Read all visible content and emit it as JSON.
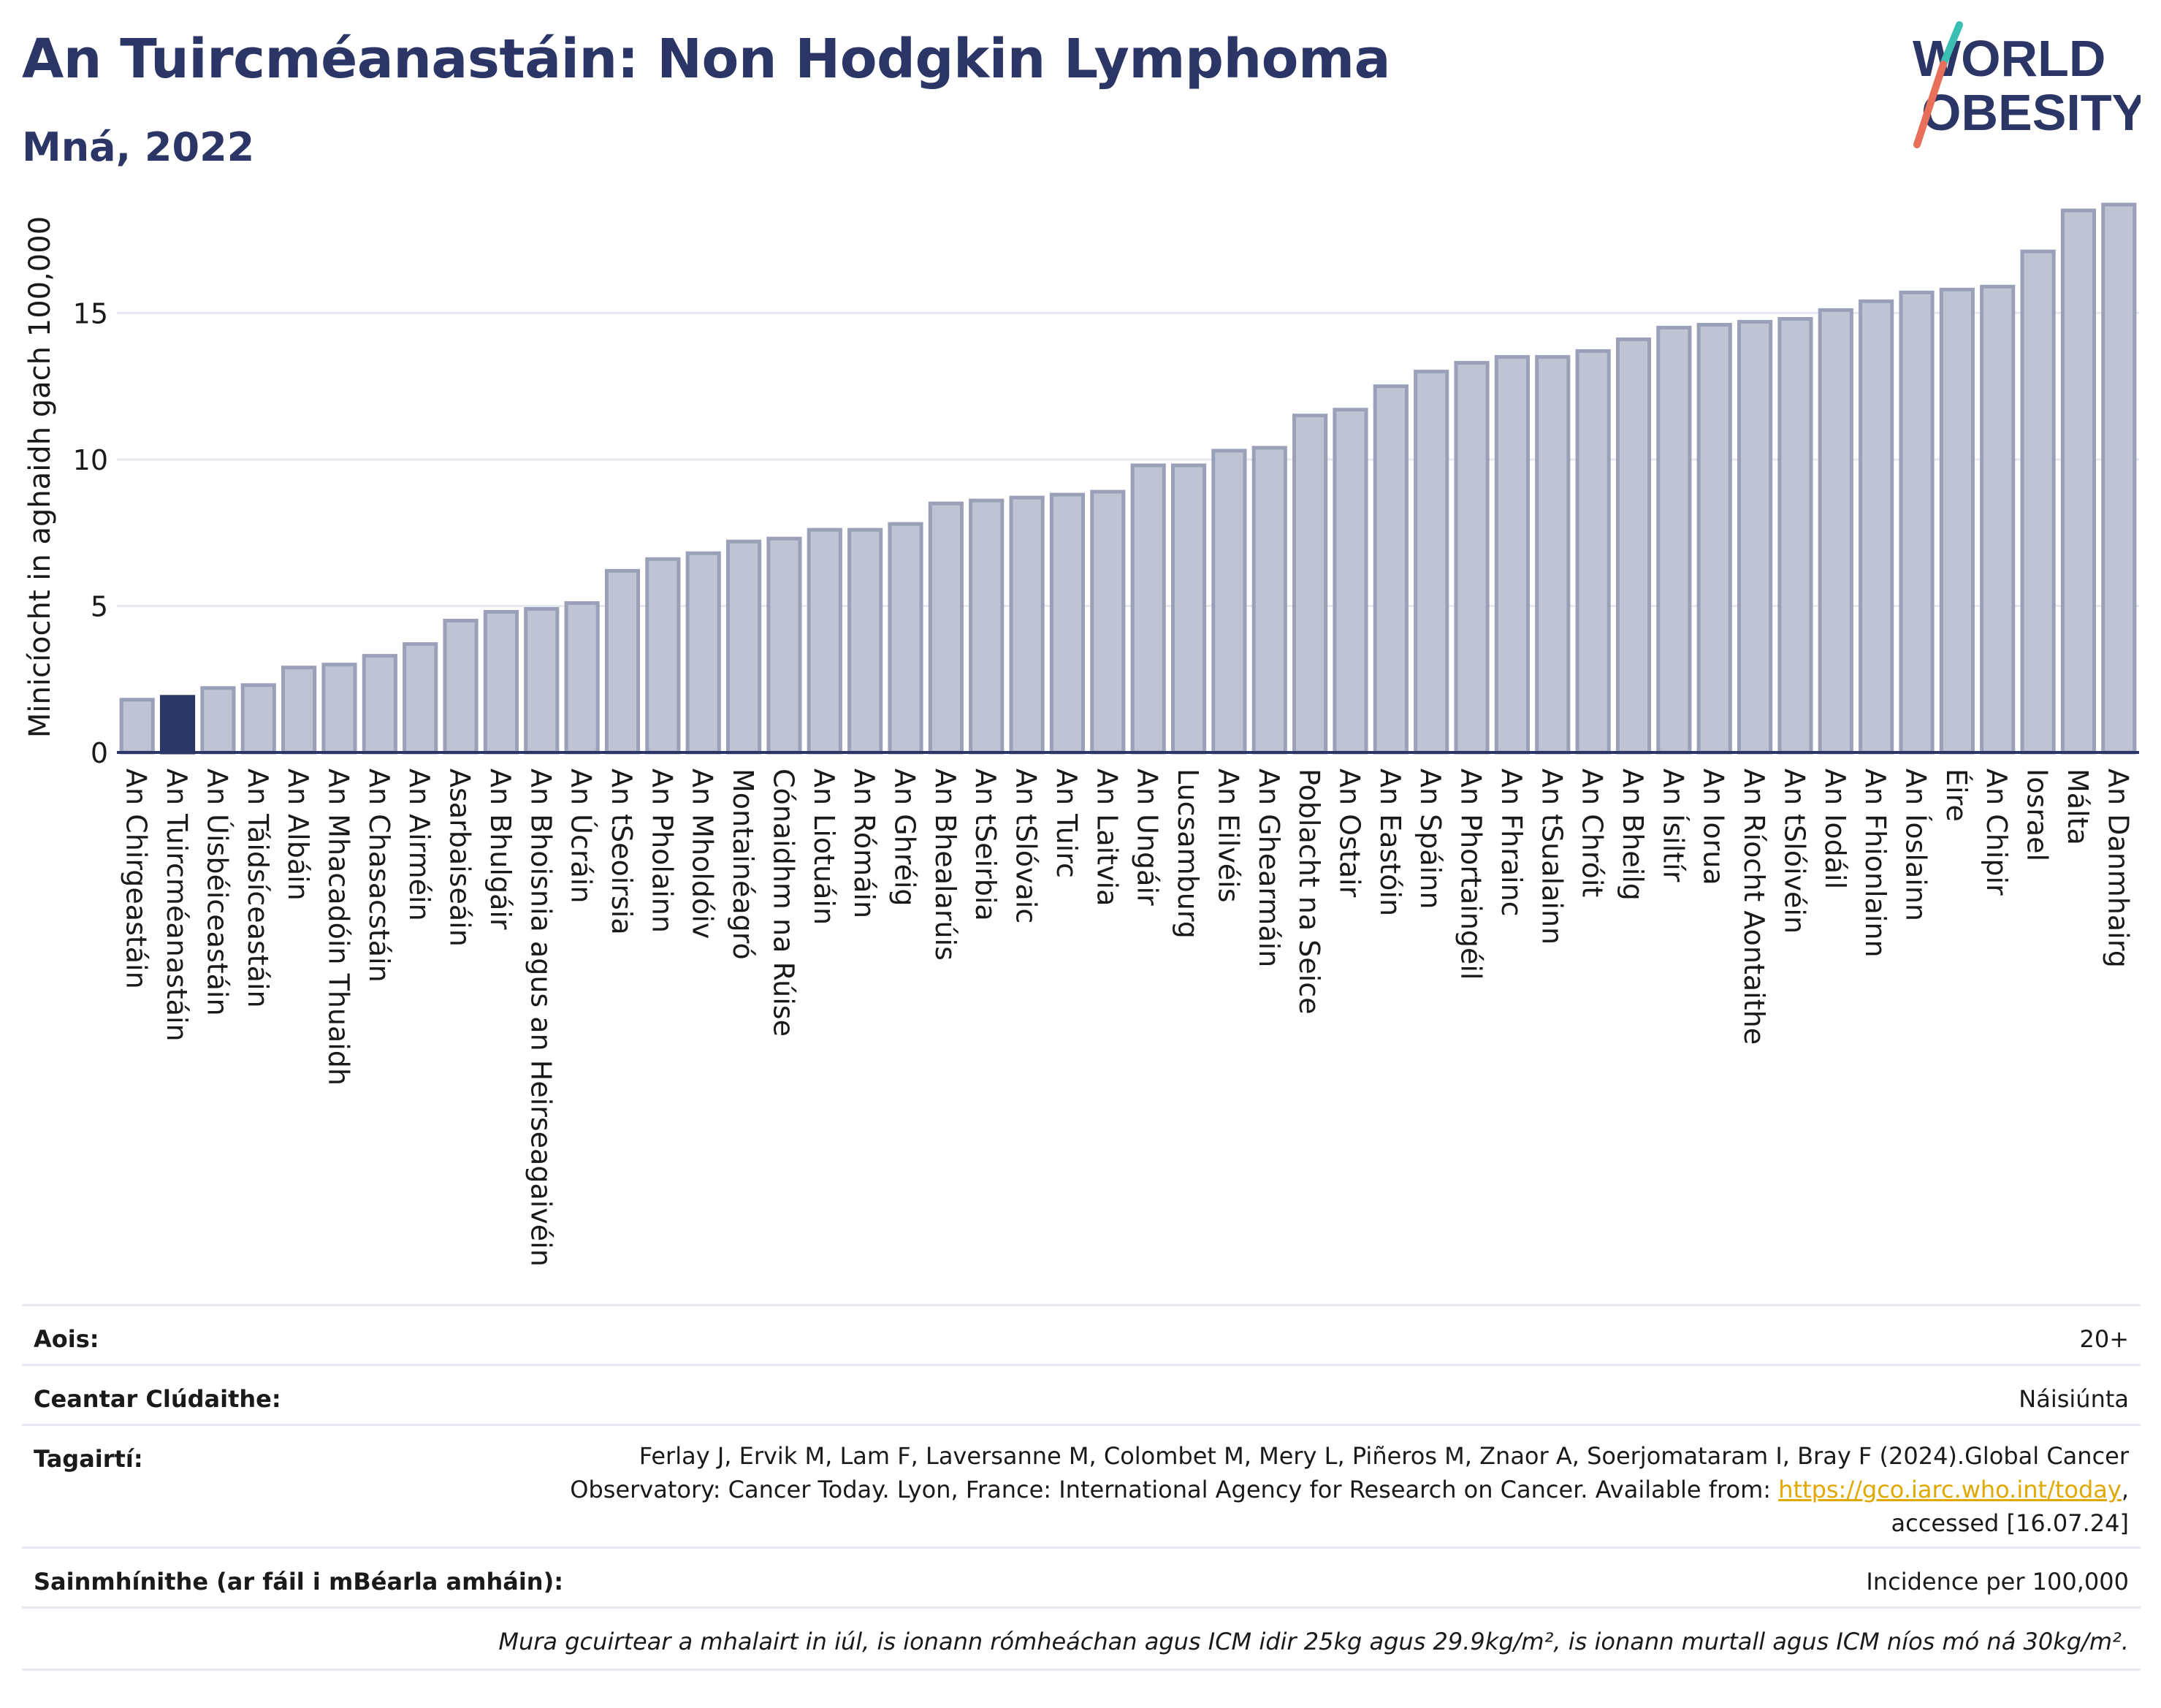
{
  "header": {
    "title": "An Tuircméanastáin: Non Hodgkin Lymphoma",
    "subtitle": "Mná, 2022"
  },
  "logo": {
    "line1": "WORLD",
    "line2": "OBESITY"
  },
  "colors": {
    "bar": "#bfc3d3",
    "bar_stroke": "#9aa0b8",
    "highlight": "#2b3666",
    "title": "#2b3666",
    "link": "#e0a800"
  },
  "chart_data": {
    "type": "bar",
    "ylabel": "Minicíocht in aghaidh gach 100,000",
    "xlabel": "",
    "ylim": [
      0,
      19
    ],
    "yticks": [
      0,
      5,
      10,
      15
    ],
    "grid": true,
    "highlight": "An Tuircméanastáin",
    "categories": [
      "An Chirgeastáin",
      "An Tuircméanastáin",
      "An Úisbéiceastáin",
      "An Táidsíceastáin",
      "An Albáin",
      "An Mhacadóin Thuaidh",
      "An Chasacstáin",
      "An Airméin",
      "Asarbaiseáin",
      "An Bhulgáir",
      "An Bhoisnia agus an Heirseagaivéin",
      "An Úcráin",
      "An tSeoirsia",
      "An Pholainn",
      "An Mholdóiv",
      "Montainéagró",
      "Cónaidhm na Rúise",
      "An Liotuáin",
      "An Rómáin",
      "An Ghréig",
      "An Bhealarúis",
      "An tSeirbia",
      "An tSlóvaic",
      "An Tuirc",
      "An Laitvia",
      "An Ungáir",
      "Lucsamburg",
      "An Eilvéis",
      "An Ghearmáin",
      "Poblacht na Seice",
      "An Ostair",
      "An Eastóin",
      "An Spáinn",
      "An Phortaingéil",
      "An Fhrainc",
      "An tSualainn",
      "An Chróit",
      "An Bheilg",
      "An Ísiltír",
      "An Iorua",
      "An Ríocht Aontaithe",
      "An tSlóivéin",
      "An Iodáil",
      "An Fhionlainn",
      "An Íoslainn",
      "Éire",
      "An Chipir",
      "Iosrael",
      "Málta",
      "An Danmhairg"
    ],
    "values": [
      1.8,
      1.9,
      2.2,
      2.3,
      2.9,
      3.0,
      3.3,
      3.7,
      4.5,
      4.8,
      4.9,
      5.1,
      6.2,
      6.6,
      6.8,
      7.2,
      7.3,
      7.6,
      7.6,
      7.8,
      8.5,
      8.6,
      8.7,
      8.8,
      8.9,
      9.8,
      9.8,
      10.3,
      10.4,
      11.5,
      11.7,
      12.5,
      13.0,
      13.3,
      13.5,
      13.5,
      13.7,
      14.1,
      14.5,
      14.6,
      14.7,
      14.8,
      15.1,
      15.4,
      15.7,
      15.8,
      15.9,
      17.1,
      18.5,
      18.7
    ]
  },
  "info": {
    "age_label": "Aois:",
    "age_value": "20+",
    "area_label": "Ceantar Clúdaithe:",
    "area_value": "Náisiúnta",
    "ref_label": "Tagairtí:",
    "ref_text": "Ferlay J, Ervik M, Lam F, Laversanne M, Colombet M, Mery L, Piñeros M, Znaor A, Soerjomataram I, Bray F (2024).Global Cancer Observatory: Cancer Today. Lyon, France: International Agency for Research on Cancer. Available from: ",
    "ref_link": "https://gco.iarc.who.int/today",
    "ref_tail": ", accessed [16.07.24]",
    "def_label": "Sainmhínithe (ar fáil i mBéarla amháin):",
    "def_value": "Incidence per 100,000",
    "footnote": "Mura gcuirtear a mhalairt in iúl, is ionann rómheáchan agus ICM idir 25kg agus 29.9kg/m², is ionann murtall agus ICM níos mó ná 30kg/m²."
  }
}
